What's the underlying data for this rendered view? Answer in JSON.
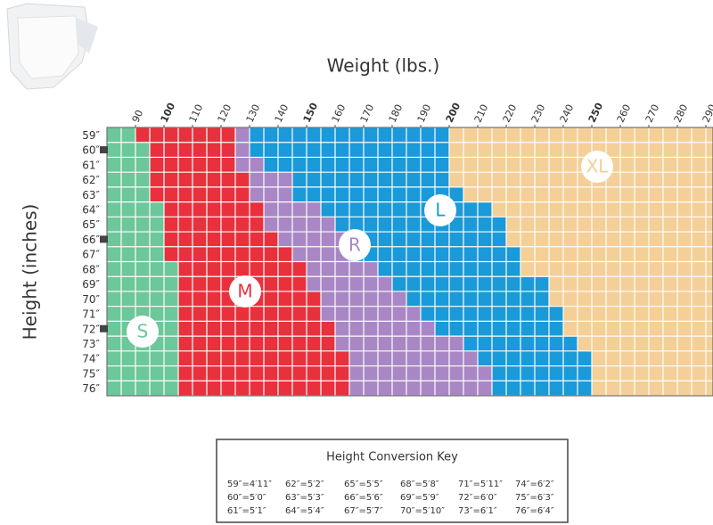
{
  "chart_data": {
    "type": "size_chart",
    "title": "Weight (lbs.)",
    "y_label": "Height (inches)",
    "categories": [
      "59″",
      "60″",
      "61″",
      "62″",
      "63″",
      "64″",
      "65″",
      "66″",
      "67″",
      "68″",
      "69″",
      "70″",
      "71″",
      "72″",
      "73″",
      "74″",
      "75″",
      "76″"
    ],
    "xlim": [
      80,
      292.5
    ],
    "xticks": [
      90,
      100,
      110,
      120,
      130,
      140,
      150,
      160,
      170,
      180,
      190,
      200,
      210,
      220,
      230,
      240,
      250,
      260,
      270,
      280,
      290
    ],
    "series": [
      {
        "name": "S",
        "color": "#6cc79a",
        "values": [
          90,
          95,
          95,
          95,
          95,
          100,
          100,
          100,
          100,
          105,
          105,
          105,
          105,
          105,
          105,
          105,
          105,
          105
        ]
      },
      {
        "name": "M",
        "color": "#e8313c",
        "values": [
          125,
          125,
          125,
          130,
          130,
          135,
          135,
          140,
          145,
          150,
          150,
          155,
          155,
          160,
          160,
          165,
          165,
          165
        ]
      },
      {
        "name": "R",
        "color": "#a987c4",
        "values": [
          130,
          130,
          135,
          145,
          145,
          155,
          160,
          165,
          165,
          175,
          180,
          185,
          190,
          195,
          205,
          210,
          215,
          215
        ]
      },
      {
        "name": "L",
        "color": "#1a9ad8",
        "values": [
          200,
          200,
          200,
          200,
          205,
          215,
          220,
          220,
          225,
          225,
          235,
          235,
          240,
          240,
          245,
          250,
          250,
          250
        ]
      },
      {
        "name": "XL",
        "color": "#f4cf97"
      }
    ]
  },
  "conversion_key": {
    "title": "Height Conversion Key",
    "rows": [
      [
        "59″=4′11″",
        "62″=5′2″",
        "65″=5′5″",
        "68″=5′8″",
        "71″=5′11″",
        "74″=6′2″"
      ],
      [
        "60″=5′0″",
        "63″=5′3″",
        "66″=5′6″",
        "69″=5′9″",
        "72″=6′0″",
        "75″=6′3″"
      ],
      [
        "61″=5′1″",
        "64″=5′4″",
        "67″=5′7″",
        "70″=5′10″",
        "73″=6′1″",
        "76″=6′4″"
      ]
    ]
  }
}
